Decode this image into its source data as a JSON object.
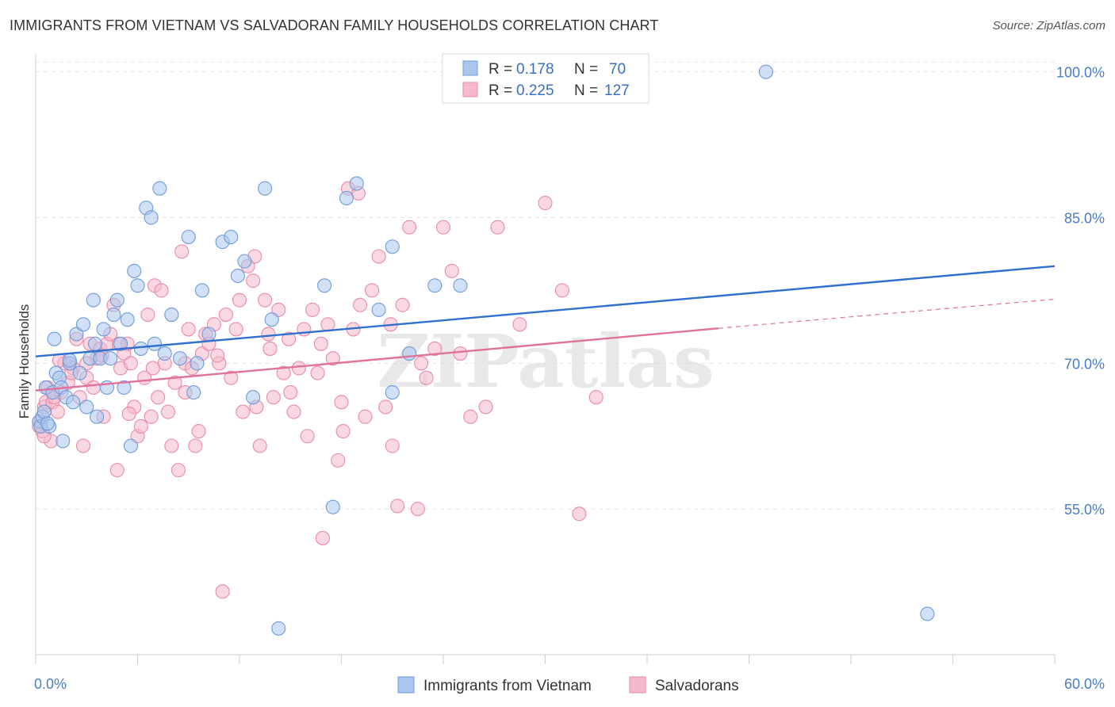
{
  "title": "IMMIGRANTS FROM VIETNAM VS SALVADORAN FAMILY HOUSEHOLDS CORRELATION CHART",
  "source": "Source: ZipAtlas.com",
  "watermark": "ZIPatlas",
  "colors": {
    "blue_fill": "#a9c6ef",
    "blue_stroke": "#6f9ad8",
    "blue_line": "#2f6fcf",
    "pink_fill": "#f6b8cb",
    "pink_stroke": "#e98aa8",
    "pink_line": "#e07199",
    "tick_text": "#4a7cc4"
  },
  "legend": {
    "rows": [
      {
        "r_label": "R =",
        "r_value": "0.178",
        "n_label": "N =",
        "n_value": "70"
      },
      {
        "r_label": "R =",
        "r_value": "0.225",
        "n_label": "N =",
        "n_value": "127"
      }
    ]
  },
  "chart_data": {
    "type": "scatter",
    "xlabel": "",
    "ylabel": "Family Households",
    "xlim": [
      0,
      60
    ],
    "ylim": [
      40,
      102.5
    ],
    "x_tick_labels": [
      "0.0%",
      "60.0%"
    ],
    "y_tick_values": [
      55,
      70,
      85,
      100
    ],
    "y_tick_labels": [
      "55.0%",
      "70.0%",
      "85.0%",
      "100.0%"
    ],
    "grid": true,
    "series": [
      {
        "name": "Immigrants from Vietnam",
        "color": "blue",
        "trend": {
          "x": [
            0,
            60
          ],
          "y": [
            70.7,
            80.0
          ],
          "dashed_to": null
        },
        "points": [
          [
            0.2,
            64.0
          ],
          [
            0.3,
            63.5
          ],
          [
            0.4,
            64.5
          ],
          [
            0.5,
            65.0
          ],
          [
            0.6,
            67.5
          ],
          [
            0.8,
            63.5
          ],
          [
            1.0,
            67.0
          ],
          [
            1.2,
            69.0
          ],
          [
            1.4,
            68.5
          ],
          [
            1.5,
            67.5
          ],
          [
            1.6,
            62.0
          ],
          [
            1.8,
            66.5
          ],
          [
            2.0,
            70.0
          ],
          [
            2.2,
            66.0
          ],
          [
            2.4,
            73.0
          ],
          [
            2.6,
            69.0
          ],
          [
            2.8,
            74.0
          ],
          [
            3.0,
            65.5
          ],
          [
            3.2,
            70.5
          ],
          [
            3.4,
            76.5
          ],
          [
            3.6,
            64.5
          ],
          [
            3.8,
            70.5
          ],
          [
            4.0,
            73.5
          ],
          [
            4.2,
            67.5
          ],
          [
            4.4,
            70.5
          ],
          [
            4.6,
            75.0
          ],
          [
            4.8,
            76.5
          ],
          [
            5.0,
            72.0
          ],
          [
            5.2,
            67.5
          ],
          [
            5.4,
            74.5
          ],
          [
            5.6,
            61.5
          ],
          [
            5.8,
            79.5
          ],
          [
            6.0,
            78.0
          ],
          [
            6.2,
            71.5
          ],
          [
            6.5,
            86.0
          ],
          [
            6.8,
            85.0
          ],
          [
            7.0,
            72.0
          ],
          [
            7.3,
            88.0
          ],
          [
            7.6,
            71.0
          ],
          [
            8.0,
            75.0
          ],
          [
            8.5,
            70.5
          ],
          [
            9.0,
            83.0
          ],
          [
            9.3,
            67.0
          ],
          [
            9.5,
            70.0
          ],
          [
            9.8,
            77.5
          ],
          [
            10.2,
            73.0
          ],
          [
            11.0,
            82.5
          ],
          [
            11.5,
            83.0
          ],
          [
            11.9,
            79.0
          ],
          [
            12.3,
            80.5
          ],
          [
            12.8,
            66.5
          ],
          [
            13.5,
            88.0
          ],
          [
            13.9,
            74.5
          ],
          [
            14.3,
            42.7
          ],
          [
            17.0,
            78.0
          ],
          [
            17.5,
            55.2
          ],
          [
            18.3,
            87.0
          ],
          [
            18.9,
            88.5
          ],
          [
            20.2,
            75.5
          ],
          [
            21.0,
            82.0
          ],
          [
            21.0,
            67.0
          ],
          [
            22.0,
            71.0
          ],
          [
            23.5,
            78.0
          ],
          [
            25.0,
            78.0
          ],
          [
            43.0,
            100.0
          ],
          [
            52.5,
            44.2
          ],
          [
            0.7,
            63.8
          ],
          [
            1.1,
            72.5
          ],
          [
            2.0,
            70.3
          ],
          [
            3.5,
            72.0
          ]
        ]
      },
      {
        "name": "Salvadorans",
        "color": "pink",
        "trend": {
          "x": [
            0,
            40.2
          ],
          "y": [
            67.2,
            73.6
          ],
          "dashed_to": [
            60,
            76.6
          ]
        },
        "points": [
          [
            0.2,
            63.5
          ],
          [
            0.3,
            64.0
          ],
          [
            0.4,
            63.0
          ],
          [
            0.5,
            65.5
          ],
          [
            0.6,
            66.0
          ],
          [
            0.7,
            67.5
          ],
          [
            0.9,
            62.0
          ],
          [
            1.0,
            66.0
          ],
          [
            1.1,
            66.5
          ],
          [
            1.3,
            65.0
          ],
          [
            1.5,
            67.0
          ],
          [
            1.7,
            70.0
          ],
          [
            1.9,
            68.0
          ],
          [
            2.0,
            70.0
          ],
          [
            2.2,
            69.5
          ],
          [
            2.4,
            72.5
          ],
          [
            2.6,
            66.5
          ],
          [
            2.8,
            61.5
          ],
          [
            3.0,
            68.5
          ],
          [
            3.2,
            72.0
          ],
          [
            3.4,
            67.5
          ],
          [
            3.6,
            70.5
          ],
          [
            3.8,
            71.5
          ],
          [
            4.0,
            64.5
          ],
          [
            4.2,
            72.0
          ],
          [
            4.4,
            73.0
          ],
          [
            4.6,
            76.0
          ],
          [
            4.8,
            59.0
          ],
          [
            5.0,
            69.5
          ],
          [
            5.2,
            71.0
          ],
          [
            5.4,
            72.0
          ],
          [
            5.6,
            70.0
          ],
          [
            5.8,
            65.5
          ],
          [
            6.0,
            62.5
          ],
          [
            6.2,
            63.5
          ],
          [
            6.4,
            68.5
          ],
          [
            6.6,
            75.0
          ],
          [
            6.8,
            64.5
          ],
          [
            7.0,
            78.0
          ],
          [
            7.2,
            66.5
          ],
          [
            7.4,
            77.5
          ],
          [
            7.6,
            70.0
          ],
          [
            7.8,
            65.0
          ],
          [
            8.0,
            61.5
          ],
          [
            8.2,
            68.0
          ],
          [
            8.4,
            59.0
          ],
          [
            8.6,
            81.5
          ],
          [
            8.8,
            70.0
          ],
          [
            9.0,
            73.5
          ],
          [
            9.2,
            69.5
          ],
          [
            9.4,
            61.5
          ],
          [
            9.6,
            63.0
          ],
          [
            9.8,
            71.0
          ],
          [
            10.0,
            73.0
          ],
          [
            10.2,
            72.0
          ],
          [
            10.5,
            74.0
          ],
          [
            10.8,
            70.0
          ],
          [
            11.0,
            46.5
          ],
          [
            11.2,
            75.0
          ],
          [
            11.5,
            68.5
          ],
          [
            11.8,
            73.5
          ],
          [
            12.0,
            76.5
          ],
          [
            12.2,
            65.0
          ],
          [
            12.5,
            80.0
          ],
          [
            12.8,
            78.5
          ],
          [
            13.0,
            65.5
          ],
          [
            13.2,
            61.5
          ],
          [
            13.5,
            76.5
          ],
          [
            13.8,
            71.5
          ],
          [
            14.0,
            66.5
          ],
          [
            14.3,
            75.5
          ],
          [
            14.6,
            69.0
          ],
          [
            14.9,
            72.5
          ],
          [
            15.2,
            65.0
          ],
          [
            15.5,
            69.5
          ],
          [
            15.8,
            73.5
          ],
          [
            16.0,
            62.5
          ],
          [
            16.3,
            75.5
          ],
          [
            16.6,
            69.0
          ],
          [
            16.9,
            52.0
          ],
          [
            17.2,
            74.0
          ],
          [
            17.5,
            70.5
          ],
          [
            17.8,
            60.0
          ],
          [
            18.1,
            63.0
          ],
          [
            18.4,
            88.0
          ],
          [
            18.7,
            73.5
          ],
          [
            19.0,
            87.5
          ],
          [
            19.4,
            64.5
          ],
          [
            19.8,
            77.5
          ],
          [
            20.2,
            81.0
          ],
          [
            20.6,
            65.5
          ],
          [
            21.0,
            61.5
          ],
          [
            21.3,
            55.3
          ],
          [
            21.6,
            76.0
          ],
          [
            22.0,
            84.0
          ],
          [
            22.5,
            55.0
          ],
          [
            23.0,
            68.5
          ],
          [
            23.5,
            71.5
          ],
          [
            24.0,
            84.0
          ],
          [
            24.5,
            79.5
          ],
          [
            25.0,
            71.0
          ],
          [
            25.6,
            64.5
          ],
          [
            26.5,
            65.5
          ],
          [
            27.2,
            84.0
          ],
          [
            28.5,
            74.0
          ],
          [
            30.0,
            86.5
          ],
          [
            31.0,
            77.5
          ],
          [
            32.0,
            54.5
          ],
          [
            33.0,
            66.5
          ],
          [
            3.0,
            70.0
          ],
          [
            2.1,
            69.0
          ],
          [
            4.9,
            72.0
          ],
          [
            6.9,
            69.5
          ],
          [
            12.9,
            81.0
          ],
          [
            15.0,
            67.0
          ],
          [
            19.1,
            76.0
          ],
          [
            0.5,
            62.5
          ],
          [
            1.4,
            70.3
          ],
          [
            3.9,
            70.8
          ],
          [
            5.5,
            64.8
          ],
          [
            8.8,
            67.0
          ],
          [
            10.7,
            70.8
          ],
          [
            13.7,
            73.0
          ],
          [
            16.8,
            72.0
          ],
          [
            18.0,
            66.0
          ],
          [
            20.9,
            74.0
          ],
          [
            22.7,
            70.0
          ]
        ]
      }
    ]
  }
}
